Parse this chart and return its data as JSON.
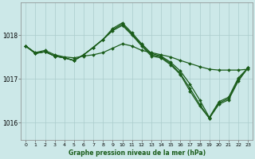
{
  "title": "Graphe pression niveau de la mer (hPa)",
  "bg_color": "#cce8e8",
  "grid_color": "#aacccc",
  "line_color": "#1a5c1a",
  "xlim": [
    -0.5,
    23.5
  ],
  "ylim": [
    1015.6,
    1018.75
  ],
  "yticks": [
    1016,
    1017,
    1018
  ],
  "xticks": [
    0,
    1,
    2,
    3,
    4,
    5,
    6,
    7,
    8,
    9,
    10,
    11,
    12,
    13,
    14,
    15,
    16,
    17,
    18,
    19,
    20,
    21,
    22,
    23
  ],
  "series": [
    [
      1017.75,
      1017.6,
      1017.65,
      1017.55,
      1017.5,
      1017.48,
      1017.52,
      1017.55,
      1017.6,
      1017.7,
      1017.8,
      1017.75,
      1017.65,
      1017.6,
      1017.55,
      1017.5,
      1017.42,
      1017.35,
      1017.28,
      1017.22,
      1017.2,
      1017.2,
      1017.2,
      1017.22
    ],
    [
      1017.75,
      1017.58,
      1017.62,
      1017.52,
      1017.48,
      1017.42,
      1017.55,
      1017.72,
      1017.9,
      1018.15,
      1018.28,
      1018.05,
      1017.8,
      1017.58,
      1017.52,
      1017.38,
      1017.18,
      1016.88,
      1016.52,
      1016.12,
      1016.48,
      1016.58,
      1017.02,
      1017.25
    ],
    [
      1017.75,
      1017.58,
      1017.62,
      1017.52,
      1017.48,
      1017.42,
      1017.55,
      1017.72,
      1017.9,
      1018.12,
      1018.25,
      1018.02,
      1017.78,
      1017.55,
      1017.5,
      1017.35,
      1017.12,
      1016.78,
      1016.42,
      1016.1,
      1016.45,
      1016.55,
      1016.98,
      1017.25
    ],
    [
      1017.75,
      1017.58,
      1017.62,
      1017.52,
      1017.48,
      1017.42,
      1017.55,
      1017.72,
      1017.9,
      1018.1,
      1018.22,
      1018.0,
      1017.75,
      1017.52,
      1017.48,
      1017.32,
      1017.1,
      1016.72,
      1016.38,
      1016.1,
      1016.42,
      1016.52,
      1016.95,
      1017.25
    ]
  ]
}
